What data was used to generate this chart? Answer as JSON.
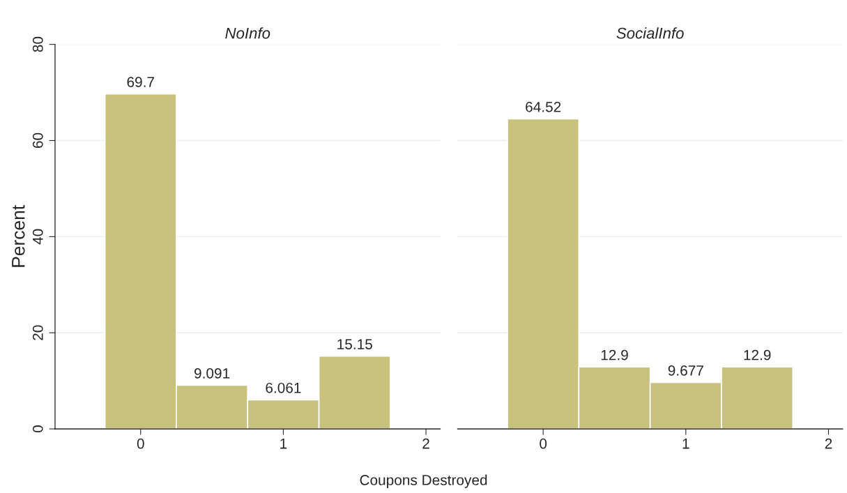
{
  "chart_data": [
    {
      "type": "histogram",
      "title": "NoInfo",
      "ylabel": "Percent",
      "xlabel": "Coupons Destroyed",
      "bins": [
        -0.25,
        0.25,
        0.75,
        1.25,
        1.75
      ],
      "values": [
        69.7,
        9.091,
        6.061,
        15.15
      ],
      "color": "#c9c27f",
      "data_labels": true,
      "xlim": [
        -0.6,
        2.1
      ],
      "xticks": [
        0,
        1,
        2
      ],
      "ylim": [
        0,
        80
      ],
      "yticks": [
        0,
        20,
        40,
        60,
        80
      ],
      "grid": "y"
    },
    {
      "type": "histogram",
      "title": "SocialInfo",
      "bins": [
        -0.25,
        0.25,
        0.75,
        1.25,
        1.75
      ],
      "values": [
        64.52,
        12.9,
        9.677,
        12.9
      ],
      "color": "#c9c27f",
      "data_labels": true,
      "xlim": [
        -0.6,
        2.1
      ],
      "xticks": [
        0,
        1,
        2
      ],
      "ylim": [
        0,
        80
      ],
      "yticks": [
        0,
        20,
        40,
        60,
        80
      ],
      "grid": "y",
      "tick_labels": "x"
    }
  ]
}
